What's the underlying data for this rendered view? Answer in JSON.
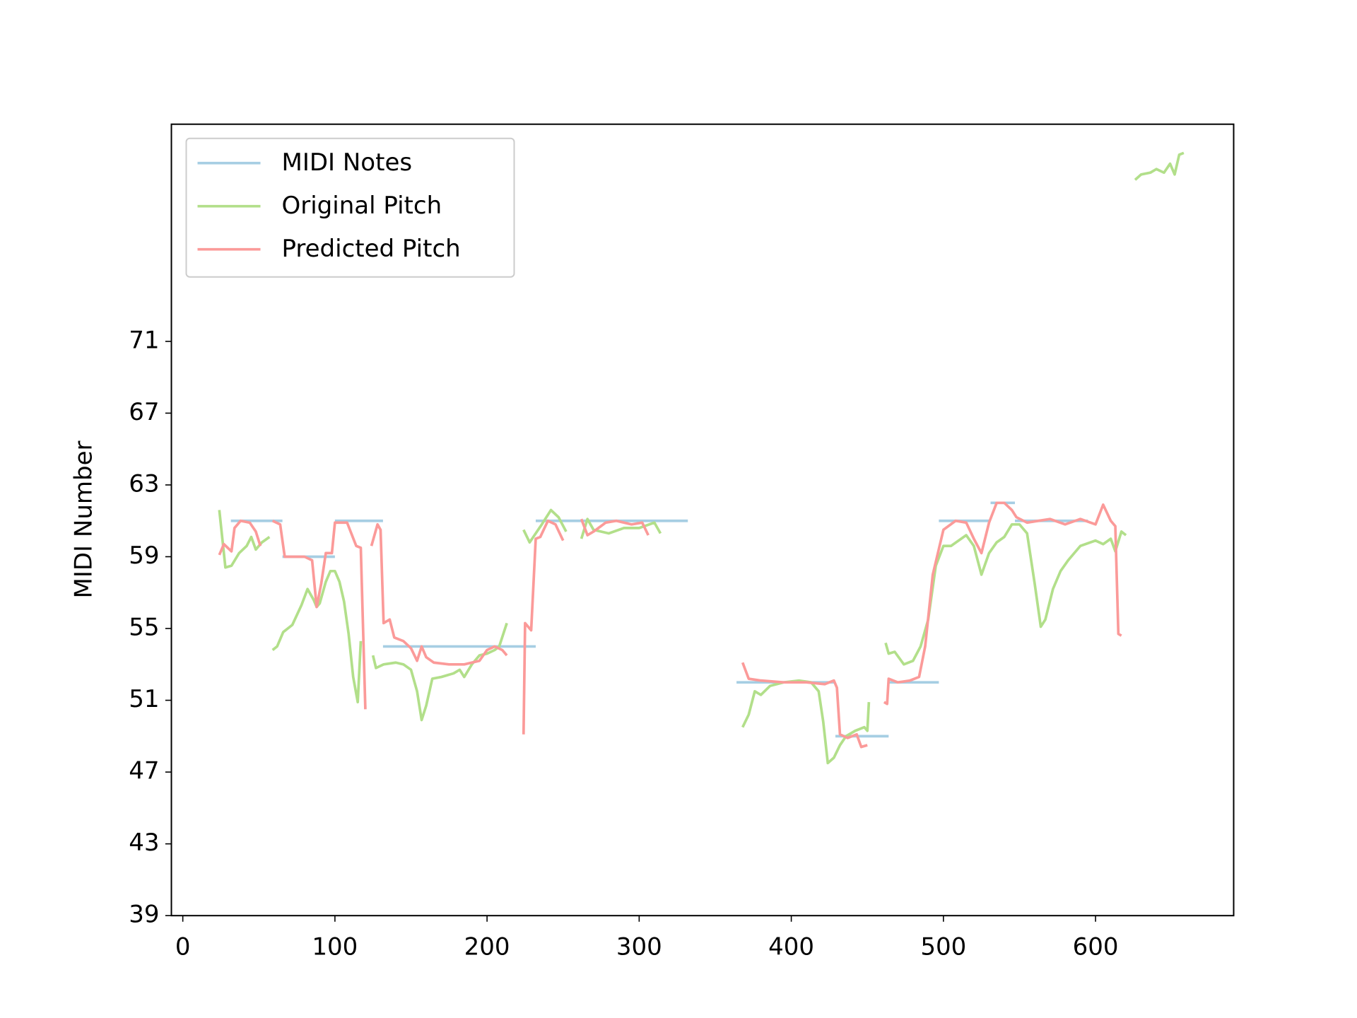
{
  "chart_data": {
    "type": "line",
    "y_label": "MIDI Number",
    "xlim": [
      -7.5,
      690.8
    ],
    "ylim": [
      39,
      83.1
    ],
    "xticks": [
      0,
      100,
      200,
      300,
      400,
      500,
      600
    ],
    "yticks": [
      39,
      43,
      47,
      51,
      55,
      59,
      63,
      67,
      71
    ],
    "legend": "upper left",
    "series": [
      {
        "name": "MIDI Notes",
        "color": "#a6cee3",
        "x": [
          31.6,
          65.5,
          65.5,
          65.5,
          100,
          100,
          100,
          131.6,
          131.6,
          131.6,
          232,
          232,
          232,
          332,
          348,
          364,
          429,
          429,
          429,
          464,
          464,
          464,
          497,
          497,
          497,
          531,
          531,
          531,
          547,
          547,
          547,
          595
        ],
        "values": [
          61,
          61,
          null,
          59,
          59,
          null,
          61,
          61,
          null,
          54,
          54,
          null,
          61,
          61,
          null,
          52,
          52,
          null,
          49,
          49,
          null,
          52,
          52,
          null,
          61,
          61,
          null,
          62,
          62,
          null,
          61,
          61
        ]
      },
      {
        "name": "Original Pitch",
        "color": "#b2df8a",
        "x": [
          24,
          28,
          32,
          37,
          42,
          45,
          48,
          52,
          57,
          58,
          59,
          62,
          66,
          72,
          78,
          82,
          86,
          88,
          90,
          94,
          97,
          100,
          103,
          106,
          109,
          112,
          115,
          117,
          121,
          125,
          127,
          132,
          140,
          145,
          150,
          154,
          157,
          160,
          164,
          170,
          178,
          182,
          185,
          190,
          195,
          200,
          205,
          208,
          213,
          218,
          224,
          228,
          232,
          236,
          242,
          247,
          252,
          257,
          262,
          266,
          270,
          280,
          290,
          300,
          310,
          314,
          340,
          368,
          372,
          376,
          380,
          386,
          395,
          405,
          413,
          418,
          421,
          424,
          428,
          432,
          436,
          442,
          448,
          450,
          451,
          456,
          462,
          464,
          468,
          474,
          480,
          485,
          490,
          495,
          500,
          505,
          510,
          515,
          520,
          525,
          530,
          535,
          540,
          545,
          550,
          555,
          560,
          564,
          567,
          572,
          577,
          582,
          590,
          600,
          605,
          610,
          613,
          617,
          620,
          623,
          626,
          630,
          636,
          640,
          645,
          649,
          652,
          655,
          658
        ],
        "values": [
          61.6,
          58.4,
          58.5,
          59.2,
          59.6,
          60.1,
          59.4,
          59.8,
          60.1,
          null,
          53.8,
          54,
          54.8,
          55.2,
          56.3,
          57.2,
          56.6,
          56.2,
          56.4,
          57.6,
          58.2,
          58.2,
          57.6,
          56.5,
          54.7,
          52.3,
          50.9,
          54.3,
          null,
          53.5,
          52.8,
          53,
          53.1,
          53,
          52.7,
          51.5,
          49.9,
          50.7,
          52.2,
          52.3,
          52.5,
          52.7,
          52.3,
          53,
          53.5,
          53.6,
          53.8,
          54,
          55.3,
          null,
          60.5,
          59.8,
          60.3,
          60.8,
          61.6,
          61.2,
          60.4,
          null,
          60,
          61.1,
          60.5,
          60.3,
          60.6,
          60.6,
          60.9,
          60.3,
          null,
          49.5,
          50.2,
          51.5,
          51.3,
          51.8,
          52,
          52.1,
          52,
          51.5,
          49.8,
          47.5,
          47.8,
          48.5,
          49,
          49.3,
          49.5,
          49.3,
          50.9,
          null,
          54.2,
          53.6,
          53.7,
          53,
          53.2,
          54,
          55.5,
          58.5,
          59.6,
          59.6,
          59.9,
          60.2,
          59.6,
          58,
          59.2,
          59.8,
          60.1,
          60.8,
          60.8,
          60.3,
          57.5,
          55.1,
          55.5,
          57.2,
          58.2,
          58.8,
          59.6,
          59.9,
          59.7,
          60,
          59.3,
          60.4,
          60.2,
          null,
          80,
          80.3,
          80.4,
          80.6,
          80.4,
          80.9,
          80.3,
          81.4,
          81.5
        ]
      },
      {
        "name": "Predicted Pitch",
        "color": "#fb9a99",
        "x": [
          24,
          27,
          32,
          34,
          38,
          44,
          48,
          51,
          55,
          59,
          64,
          67,
          80,
          85,
          88,
          91,
          94,
          98,
          100,
          108,
          114,
          117,
          120,
          122,
          124,
          128,
          130,
          132,
          136,
          139,
          145,
          150,
          154,
          157,
          160,
          165,
          175,
          185,
          195,
          200,
          205,
          210,
          213,
          218,
          224,
          225,
          229,
          232,
          235,
          240,
          245,
          250,
          256,
          262,
          266,
          270,
          278,
          285,
          295,
          302,
          306,
          340,
          368,
          372,
          380,
          395,
          410,
          422,
          428,
          430,
          432,
          437,
          443,
          446,
          450,
          455,
          461,
          463,
          464,
          470,
          478,
          484,
          488,
          493,
          500,
          508,
          515,
          520,
          525,
          530,
          535,
          540,
          545,
          548,
          555,
          570,
          580,
          590,
          600,
          605,
          610,
          613,
          615,
          617
        ],
        "values": [
          59.1,
          59.7,
          59.3,
          60.6,
          61,
          60.9,
          60.4,
          59.6,
          null,
          61,
          60.8,
          59,
          59,
          58.8,
          56.2,
          57.5,
          59.2,
          59.2,
          60.9,
          60.9,
          59.6,
          59.5,
          50.5,
          null,
          59.6,
          60.8,
          60.5,
          55.3,
          55.5,
          54.5,
          54.3,
          53.9,
          53.2,
          54,
          53.4,
          53.1,
          53,
          53,
          53.2,
          53.8,
          54,
          53.8,
          53.5,
          null,
          49.1,
          55.3,
          54.9,
          60,
          60.1,
          61,
          60.8,
          59.9,
          null,
          61.1,
          60.2,
          60.4,
          60.9,
          61,
          60.8,
          60.9,
          60.2,
          null,
          53.1,
          52.2,
          52.1,
          52,
          52,
          51.9,
          52.1,
          51.7,
          49.1,
          48.9,
          49.1,
          48.4,
          48.5,
          null,
          50.9,
          50.8,
          52.2,
          52,
          52.1,
          52.3,
          54,
          58,
          60.5,
          61,
          60.9,
          60,
          59.2,
          60.9,
          62,
          62,
          61.6,
          61.2,
          60.9,
          61.1,
          60.8,
          61.1,
          60.8,
          61.9,
          61,
          60.7,
          54.7,
          54.6
        ]
      }
    ]
  }
}
